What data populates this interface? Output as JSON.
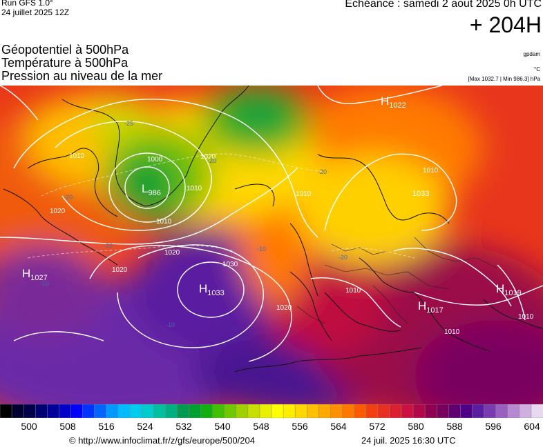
{
  "header": {
    "run": "Run GFS 1.0°",
    "run_date": "24 juillet 2025 12Z",
    "echeance": "Echéance : samedi 2 aout 2025 0h UTC",
    "lead": "+ 204H"
  },
  "fields": [
    "Géopotentiel à 500hPa",
    "Température à 500hPa",
    "Pression au niveau de la mer"
  ],
  "units": {
    "geopotential": "gpdam",
    "temperature": "°C",
    "pressure_extremes": "[Max 1032.7 | Min 986.3] hPa"
  },
  "map": {
    "pressure_centers": [
      {
        "type": "L",
        "value": "986"
      },
      {
        "type": "H",
        "value": "1033"
      },
      {
        "type": "H",
        "value": "1027"
      },
      {
        "type": "H",
        "value": "1022"
      },
      {
        "type": "H",
        "value": "1017"
      },
      {
        "type": "H",
        "value": "1019"
      },
      {
        "type": "",
        "value": "1033"
      }
    ],
    "isobar_labels": [
      "1000",
      "1010",
      "1010",
      "1010",
      "1020",
      "1020",
      "1020",
      "1020",
      "1030",
      "1020",
      "1010",
      "1010",
      "1010",
      "1010",
      "1010"
    ],
    "temp_labels": [
      "-25",
      "-20",
      "-20",
      "-20",
      "-20",
      "-20",
      "-10",
      "-10",
      "-10"
    ],
    "colors": {
      "low_geopotential": "#1f9a1f",
      "mid_geopotential": "#ffe000",
      "high_geopotential": "#e8361c",
      "ridge": "#a0003a",
      "highest": "#5a1fa0"
    }
  },
  "scale": {
    "ticks": [
      "500",
      "508",
      "516",
      "524",
      "532",
      "540",
      "548",
      "556",
      "564",
      "572",
      "580",
      "588",
      "596",
      "604"
    ],
    "colors": [
      "#000000",
      "#000030",
      "#00004a",
      "#000070",
      "#00009a",
      "#0000c8",
      "#0000ff",
      "#0033ff",
      "#0066ff",
      "#0099ff",
      "#00bbff",
      "#00ccee",
      "#00cccc",
      "#00c0a0",
      "#00b080",
      "#009a50",
      "#00a030",
      "#10b010",
      "#40c000",
      "#70c800",
      "#a0d000",
      "#c8e000",
      "#e8f000",
      "#ffff00",
      "#ffee00",
      "#ffd800",
      "#ffc000",
      "#ffa800",
      "#ff9000",
      "#ff7800",
      "#ff5a00",
      "#f24010",
      "#e83020",
      "#dc2030",
      "#cc1040",
      "#b00848",
      "#900050",
      "#7a0060",
      "#600070",
      "#500088",
      "#5a1fa0",
      "#7a3ab0",
      "#9a60c0",
      "#b888d0",
      "#d0b0e0",
      "#e8d8f0"
    ]
  },
  "footer": {
    "url": "© http://www.infoclimat.fr/z/gfs/europe/500/204",
    "timestamp": "24 juil. 2025 16:30 UTC"
  }
}
